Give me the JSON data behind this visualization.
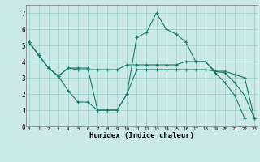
{
  "xlabel": "Humidex (Indice chaleur)",
  "background_color": "#cce9e9",
  "grid_color": "#99cccc",
  "line_color": "#1a7a6e",
  "x_hours": [
    0,
    1,
    2,
    3,
    4,
    5,
    6,
    7,
    8,
    9,
    10,
    11,
    12,
    13,
    14,
    15,
    16,
    17,
    18,
    19,
    20,
    21,
    22,
    23
  ],
  "series_max": [
    5.2,
    4.4,
    3.6,
    3.1,
    3.6,
    3.6,
    3.6,
    1.0,
    1.0,
    1.0,
    2.0,
    5.5,
    5.8,
    7.0,
    6.0,
    5.7,
    5.2,
    4.0,
    4.0,
    3.3,
    2.7,
    1.9,
    0.5,
    null
  ],
  "series_mean": [
    5.2,
    4.4,
    3.6,
    3.1,
    3.6,
    3.5,
    3.5,
    3.5,
    3.5,
    3.5,
    3.8,
    3.8,
    3.8,
    3.8,
    3.8,
    3.8,
    4.0,
    4.0,
    4.0,
    3.4,
    3.4,
    3.2,
    3.0,
    0.5
  ],
  "series_min": [
    5.2,
    4.4,
    3.6,
    3.1,
    2.2,
    1.5,
    1.5,
    1.0,
    1.0,
    1.0,
    2.0,
    3.5,
    3.5,
    3.5,
    3.5,
    3.5,
    3.5,
    3.5,
    3.5,
    3.4,
    3.3,
    2.7,
    1.9,
    0.5
  ],
  "xlim": [
    -0.3,
    23.3
  ],
  "ylim": [
    0,
    7.5
  ],
  "yticks": [
    0,
    1,
    2,
    3,
    4,
    5,
    6,
    7
  ],
  "figsize": [
    3.2,
    2.0
  ],
  "dpi": 100
}
